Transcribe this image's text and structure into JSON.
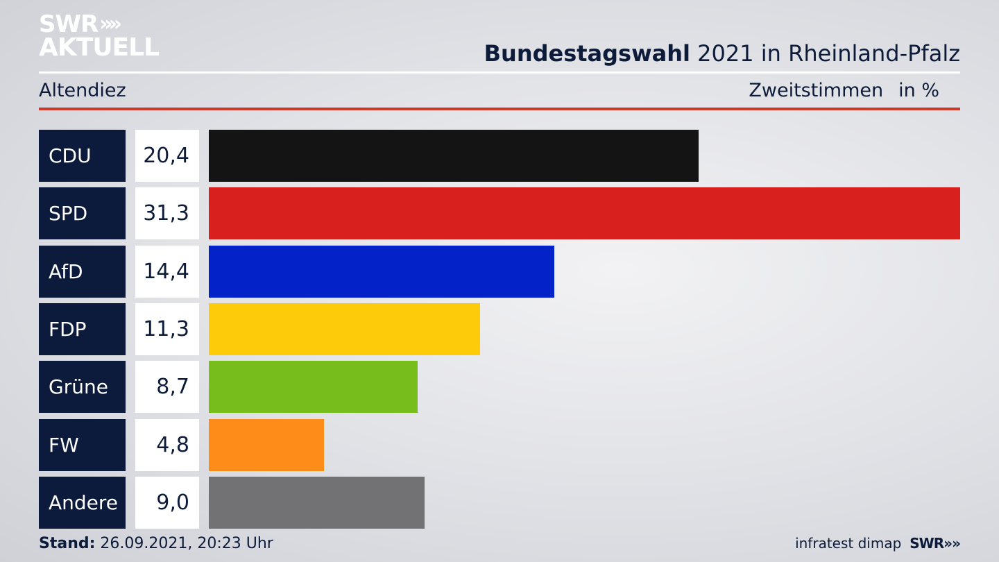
{
  "logo": {
    "line1": "SWR",
    "line2": "AKTUELL",
    "chevrons": "»"
  },
  "header": {
    "title_bold": "Bundestagswahl",
    "title_rest": " 2021 in Rheinland-Pfalz",
    "location": "Altendiez",
    "measure": "Zweitstimmen",
    "unit": "in %"
  },
  "chart_data": {
    "type": "bar",
    "orientation": "horizontal",
    "categories": [
      "CDU",
      "SPD",
      "AfD",
      "FDP",
      "Grüne",
      "FW",
      "Andere"
    ],
    "values": [
      20.4,
      31.3,
      14.4,
      11.3,
      8.7,
      4.8,
      9.0
    ],
    "value_labels": [
      "20,4",
      "31,3",
      "14,4",
      "11,3",
      "8,7",
      "4,8",
      "9,0"
    ],
    "colors": [
      "#141414",
      "#d8201f",
      "#0323c8",
      "#fecb0a",
      "#77bd1c",
      "#fd8c18",
      "#727274"
    ],
    "title": "Bundestagswahl 2021 in Rheinland-Pfalz",
    "xlim": [
      0,
      31.3
    ]
  },
  "footer": {
    "stand_label": "Stand:",
    "stand_value": " 26.09.2021, 20:23 Uhr",
    "source": "infratest dimap",
    "brand": "SWR"
  }
}
